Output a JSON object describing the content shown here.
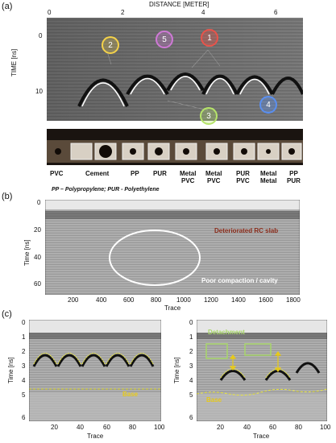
{
  "panel_a": {
    "label": "(a)",
    "xaxis_title": "DISTANCE [METER]",
    "x_ticks": [
      "0",
      "2",
      "4",
      "6"
    ],
    "y_title": "TIME [ns]",
    "y_ticks": [
      "0",
      "10"
    ],
    "markers": [
      {
        "num": "1",
        "color": "#e8534a"
      },
      {
        "num": "2",
        "color": "#f4d24a"
      },
      {
        "num": "3",
        "color": "#b6e46a"
      },
      {
        "num": "4",
        "color": "#5a8ff0"
      },
      {
        "num": "5",
        "color": "#cf79d6"
      }
    ],
    "materials": [
      {
        "line1": "PVC",
        "line2": ""
      },
      {
        "line1": "Cement",
        "line2": ""
      },
      {
        "line1": "PP",
        "line2": ""
      },
      {
        "line1": "PUR",
        "line2": ""
      },
      {
        "line1": "Metal",
        "line2": "PVC"
      },
      {
        "line1": "Metal",
        "line2": "PVC"
      },
      {
        "line1": "PUR",
        "line2": "PVC"
      },
      {
        "line1": "Metal",
        "line2": "Metal"
      },
      {
        "line1": "PP",
        "line2": "PUR"
      }
    ],
    "legend": "PP – Polypropylene; PUR - Polyethylene"
  },
  "panel_b": {
    "label": "(b)",
    "y_title": "Time [ns]",
    "y_ticks": [
      "0",
      "20",
      "40",
      "60"
    ],
    "x_title": "Trace",
    "x_ticks": [
      "200",
      "400",
      "600",
      "800",
      "1000",
      "1200",
      "1400",
      "1600",
      "1800"
    ],
    "annotation_slab": "Deteriorated RC slab",
    "annotation_cavity": "Poor compaction / cavity"
  },
  "panel_c": {
    "label": "(c)",
    "left": {
      "y_title": "Time [ns]",
      "y_ticks": [
        "0",
        "1",
        "2",
        "3",
        "4",
        "5",
        "6"
      ],
      "x_title": "Trace",
      "x_ticks": [
        "20",
        "40",
        "60",
        "80",
        "100"
      ],
      "base": "Base"
    },
    "right": {
      "y_title": "Time [ns]",
      "y_ticks": [
        "0",
        "1",
        "2",
        "3",
        "4",
        "5",
        "6"
      ],
      "x_title": "Trace",
      "x_ticks": [
        "20",
        "40",
        "60",
        "80",
        "100"
      ],
      "base": "Base",
      "detachment": "Detachment"
    }
  }
}
